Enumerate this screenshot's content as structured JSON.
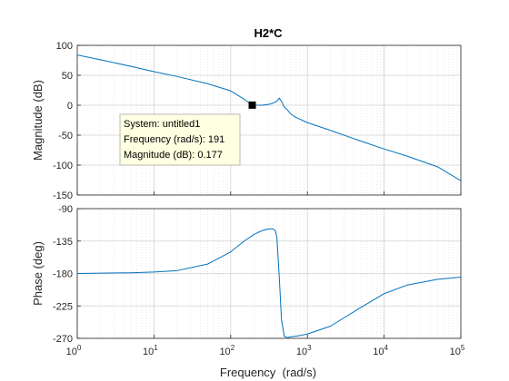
{
  "chart_data": {
    "type": "line",
    "title": "H2*C",
    "xlabel": "Frequency  (rad/s)",
    "x_scale": "log",
    "xlim": [
      1,
      100000
    ],
    "grid": true,
    "panels": [
      {
        "id": "magnitude",
        "ylabel": "Magnitude (dB)",
        "ylim": [
          -150,
          100
        ],
        "yticks": [
          100,
          50,
          0,
          -50,
          -100,
          -150
        ],
        "series": [
          {
            "x": [
              1,
              2,
              5,
              10,
              20,
              50,
              100,
              150,
              191,
              250,
              300,
              350,
              400,
              430,
              460,
              500,
              550,
              600,
              700,
              1000,
              2000,
              5000,
              10000,
              20000,
              50000,
              100000
            ],
            "y": [
              84,
              76,
              65,
              56,
              48,
              36,
              24,
              10,
              0.177,
              0,
              1,
              3,
              7,
              12,
              6,
              -3,
              -8,
              -14,
              -20,
              -29,
              -42,
              -60,
              -73,
              -85,
              -103,
              -126
            ]
          }
        ]
      },
      {
        "id": "phase",
        "ylabel": "Phase (deg)",
        "ylim": [
          -270,
          -90
        ],
        "yticks": [
          -90,
          -135,
          -180,
          -225,
          -270
        ],
        "series": [
          {
            "x": [
              1,
              2,
              5,
              10,
              20,
              50,
              100,
              150,
              200,
              250,
              300,
              350,
              380,
              400,
              430,
              460,
              500,
              550,
              600,
              700,
              800,
              1000,
              2000,
              5000,
              10000,
              20000,
              50000,
              100000
            ],
            "y": [
              -180,
              -179.5,
              -179,
              -178,
              -176,
              -167,
              -150,
              -135,
              -126,
              -121,
              -118.5,
              -118,
              -120,
              -130,
              -185,
              -245,
              -267,
              -269,
              -268,
              -267,
              -266,
              -264,
              -253,
              -227,
              -208,
              -196,
              -188,
              -185
            ]
          }
        ]
      }
    ],
    "x_tick_labels": [
      {
        "base": "10",
        "exp": "0"
      },
      {
        "base": "10",
        "exp": "1"
      },
      {
        "base": "10",
        "exp": "2"
      },
      {
        "base": "10",
        "exp": "3"
      },
      {
        "base": "10",
        "exp": "4"
      },
      {
        "base": "10",
        "exp": "5"
      }
    ],
    "datatip": {
      "x": 191,
      "y": 0.177,
      "lines": [
        "System: untitled1",
        "Frequency (rad/s): 191",
        "Magnitude (dB): 0.177"
      ]
    },
    "colors": {
      "line": "#0072BD",
      "grid": "#dcdcdc",
      "axes": "#262626",
      "tip_bg": "#ffffe1"
    }
  }
}
